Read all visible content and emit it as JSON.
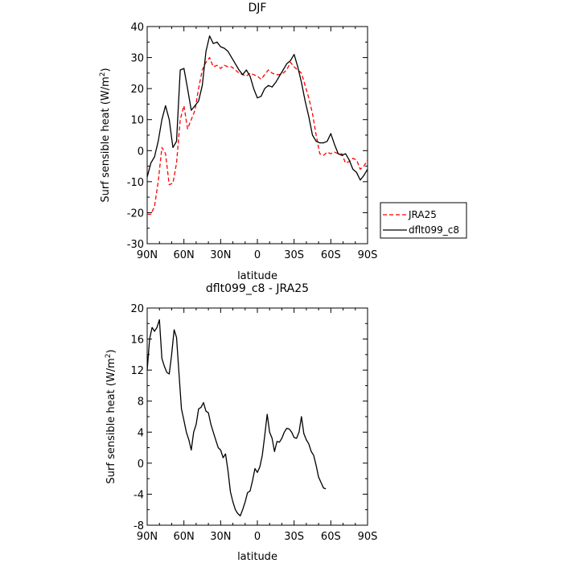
{
  "chart_data": [
    {
      "type": "line",
      "title": "DJF",
      "xlabel": "latitude",
      "ylabel": "Surf sensible heat (W/m",
      "ylabel_sup": "2",
      "ylabel_close": ")",
      "x_ticks": [
        90,
        60,
        30,
        0,
        -30,
        -60,
        -90
      ],
      "x_tick_labels": [
        "90N",
        "60N",
        "30N",
        "0",
        "30S",
        "60S",
        "90S"
      ],
      "xlim": [
        90,
        -90
      ],
      "ylim": [
        -30,
        40
      ],
      "y_ticks": [
        -30,
        -20,
        -10,
        0,
        10,
        20,
        30,
        40
      ],
      "grid": false,
      "legend_position": "outside-right",
      "series": [
        {
          "name": "JRA25",
          "color": "#ff0000",
          "dash": "dashed",
          "points": [
            [
              90,
              -20.5
            ],
            [
              87,
              -20.5
            ],
            [
              84,
              -18
            ],
            [
              81,
              -10
            ],
            [
              78,
              1
            ],
            [
              75,
              -1
            ],
            [
              72,
              -11
            ],
            [
              69,
              -10.5
            ],
            [
              66,
              -4
            ],
            [
              63,
              10
            ],
            [
              60,
              14.5
            ],
            [
              57,
              7
            ],
            [
              54,
              10
            ],
            [
              51,
              13
            ],
            [
              48,
              20
            ],
            [
              45,
              26
            ],
            [
              42,
              28.5
            ],
            [
              39,
              30
            ],
            [
              36,
              27
            ],
            [
              33,
              27.5
            ],
            [
              30,
              26.5
            ],
            [
              27,
              27.5
            ],
            [
              24,
              27
            ],
            [
              21,
              27
            ],
            [
              18,
              26
            ],
            [
              15,
              25
            ],
            [
              12,
              24.5
            ],
            [
              9,
              24
            ],
            [
              6,
              25
            ],
            [
              3,
              24.5
            ],
            [
              0,
              24
            ],
            [
              -3,
              23
            ],
            [
              -6,
              24.5
            ],
            [
              -9,
              26
            ],
            [
              -12,
              25
            ],
            [
              -15,
              24.5
            ],
            [
              -18,
              24.5
            ],
            [
              -21,
              25
            ],
            [
              -24,
              26
            ],
            [
              -27,
              28.5
            ],
            [
              -30,
              27
            ],
            [
              -33,
              26
            ],
            [
              -36,
              25
            ],
            [
              -39,
              21
            ],
            [
              -42,
              17
            ],
            [
              -45,
              12
            ],
            [
              -48,
              5
            ],
            [
              -51,
              -1
            ],
            [
              -54,
              -1.5
            ],
            [
              -57,
              -0.5
            ],
            [
              -60,
              -1
            ],
            [
              -63,
              -0.5
            ],
            [
              -66,
              -1
            ],
            [
              -69,
              -1
            ],
            [
              -72,
              -4
            ],
            [
              -75,
              -3.5
            ],
            [
              -78,
              -2.5
            ],
            [
              -81,
              -3
            ],
            [
              -84,
              -6
            ],
            [
              -87,
              -5
            ],
            [
              -90,
              -3
            ]
          ]
        },
        {
          "name": "dflt099_c8",
          "color": "#000000",
          "dash": "solid",
          "points": [
            [
              90,
              -8.5
            ],
            [
              87,
              -4
            ],
            [
              84,
              -2
            ],
            [
              81,
              3
            ],
            [
              78,
              10
            ],
            [
              75,
              14.5
            ],
            [
              72,
              10
            ],
            [
              69,
              1
            ],
            [
              66,
              3
            ],
            [
              63,
              26
            ],
            [
              60,
              26.5
            ],
            [
              57,
              20
            ],
            [
              54,
              13
            ],
            [
              51,
              14.5
            ],
            [
              48,
              16
            ],
            [
              45,
              21
            ],
            [
              42,
              32
            ],
            [
              39,
              37
            ],
            [
              36,
              34.5
            ],
            [
              33,
              35
            ],
            [
              30,
              33.5
            ],
            [
              27,
              33
            ],
            [
              24,
              32
            ],
            [
              21,
              30
            ],
            [
              18,
              28
            ],
            [
              15,
              26
            ],
            [
              12,
              24.5
            ],
            [
              9,
              26
            ],
            [
              6,
              24
            ],
            [
              3,
              20
            ],
            [
              0,
              17
            ],
            [
              -3,
              17.5
            ],
            [
              -6,
              20
            ],
            [
              -9,
              21
            ],
            [
              -12,
              20.5
            ],
            [
              -15,
              22
            ],
            [
              -18,
              24
            ],
            [
              -21,
              26
            ],
            [
              -24,
              28
            ],
            [
              -27,
              29
            ],
            [
              -30,
              31
            ],
            [
              -33,
              27
            ],
            [
              -36,
              22
            ],
            [
              -39,
              16
            ],
            [
              -42,
              11
            ],
            [
              -45,
              5
            ],
            [
              -48,
              3
            ],
            [
              -51,
              2.5
            ],
            [
              -54,
              2.5
            ],
            [
              -57,
              3
            ],
            [
              -60,
              5.5
            ],
            [
              -63,
              2
            ],
            [
              -66,
              -1
            ],
            [
              -69,
              -1.5
            ],
            [
              -72,
              -1
            ],
            [
              -75,
              -3
            ],
            [
              -78,
              -6
            ],
            [
              -81,
              -7
            ],
            [
              -84,
              -9.5
            ],
            [
              -87,
              -8
            ],
            [
              -90,
              -6
            ]
          ]
        }
      ]
    },
    {
      "type": "line",
      "title": "dflt099_c8 - JRA25",
      "xlabel": "latitude",
      "ylabel": "Surf sensible heat (W/m",
      "ylabel_sup": "2",
      "ylabel_close": ")",
      "x_ticks": [
        90,
        60,
        30,
        0,
        -30,
        -60,
        -90
      ],
      "x_tick_labels": [
        "90N",
        "60N",
        "30N",
        "0",
        "30S",
        "60S",
        "90S"
      ],
      "xlim": [
        90,
        -90
      ],
      "ylim": [
        -8,
        20
      ],
      "y_ticks": [
        -8,
        -4,
        0,
        4,
        8,
        12,
        16,
        20
      ],
      "grid": false,
      "series": [
        {
          "name": "",
          "color": "#000000",
          "dash": "solid",
          "points": [
            [
              90,
              12
            ],
            [
              88,
              16
            ],
            [
              86,
              17.5
            ],
            [
              84,
              17
            ],
            [
              82,
              17.5
            ],
            [
              80,
              18.5
            ],
            [
              78,
              13.5
            ],
            [
              76,
              12.5
            ],
            [
              74,
              11.7
            ],
            [
              72,
              11.5
            ],
            [
              70,
              14
            ],
            [
              68,
              17.2
            ],
            [
              66,
              16.2
            ],
            [
              64,
              11.5
            ],
            [
              62,
              7
            ],
            [
              60,
              5.5
            ],
            [
              58,
              4
            ],
            [
              56,
              3
            ],
            [
              54,
              1.7
            ],
            [
              52,
              4
            ],
            [
              50,
              5
            ],
            [
              48,
              7
            ],
            [
              46,
              7.2
            ],
            [
              44,
              7.8
            ],
            [
              42,
              6.7
            ],
            [
              40,
              6.5
            ],
            [
              38,
              5
            ],
            [
              36,
              4
            ],
            [
              34,
              3
            ],
            [
              32,
              2
            ],
            [
              30,
              1.7
            ],
            [
              28,
              0.7
            ],
            [
              26,
              1.2
            ],
            [
              24,
              -1
            ],
            [
              22,
              -3.7
            ],
            [
              20,
              -5
            ],
            [
              18,
              -6
            ],
            [
              16,
              -6.5
            ],
            [
              14,
              -6.8
            ],
            [
              12,
              -6
            ],
            [
              10,
              -5
            ],
            [
              8,
              -3.8
            ],
            [
              6,
              -3.6
            ],
            [
              4,
              -2.3
            ],
            [
              2,
              -0.7
            ],
            [
              0,
              -1.2
            ],
            [
              -2,
              -0.5
            ],
            [
              -4,
              1
            ],
            [
              -6,
              3.5
            ],
            [
              -8,
              6.3
            ],
            [
              -10,
              4
            ],
            [
              -12,
              3.2
            ],
            [
              -14,
              1.5
            ],
            [
              -16,
              2.8
            ],
            [
              -18,
              2.7
            ],
            [
              -20,
              3.2
            ],
            [
              -22,
              4
            ],
            [
              -24,
              4.5
            ],
            [
              -26,
              4.4
            ],
            [
              -28,
              4
            ],
            [
              -30,
              3.3
            ],
            [
              -32,
              3.2
            ],
            [
              -34,
              4
            ],
            [
              -36,
              6
            ],
            [
              -38,
              3.8
            ],
            [
              -40,
              3
            ],
            [
              -42,
              2.5
            ],
            [
              -44,
              1.5
            ],
            [
              -46,
              1
            ],
            [
              -48,
              -0.3
            ],
            [
              -50,
              -1.8
            ],
            [
              -52,
              -2.5
            ],
            [
              -54,
              -3.2
            ],
            [
              -56,
              -3.3
            ]
          ]
        }
      ]
    }
  ]
}
